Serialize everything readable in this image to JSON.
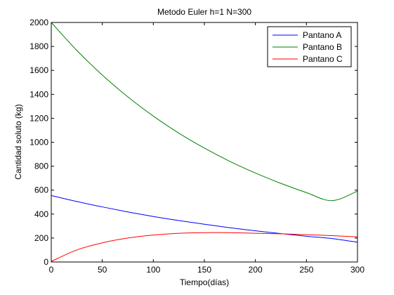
{
  "chart_data": {
    "type": "line",
    "title": "Metodo Euler h=1 N=300",
    "xlabel": "Tiempo(días)",
    "ylabel": "Cantidad soluto (kg)",
    "xlim": [
      0,
      300
    ],
    "ylim": [
      0,
      2000
    ],
    "xticks": [
      0,
      50,
      100,
      150,
      200,
      250,
      300
    ],
    "yticks": [
      0,
      200,
      400,
      600,
      800,
      1000,
      1200,
      1400,
      1600,
      1800,
      2000
    ],
    "grid": false,
    "legend_position": "top-right",
    "x": [
      0,
      25,
      50,
      75,
      100,
      125,
      150,
      175,
      200,
      225,
      250,
      275,
      300
    ],
    "series": [
      {
        "name": "Pantano A",
        "color": "#0000ff",
        "values": [
          555,
          505,
          460,
          418,
          380,
          346,
          315,
          286,
          260,
          237,
          215,
          196,
          165
        ]
      },
      {
        "name": "Pantano B",
        "color": "#008000",
        "values": [
          2000,
          1767,
          1561,
          1379,
          1218,
          1076,
          951,
          840,
          743,
          656,
          579,
          512,
          592
        ]
      },
      {
        "name": "Pantano C",
        "color": "#ff0000",
        "values": [
          5,
          100,
          160,
          200,
          225,
          240,
          245,
          245,
          240,
          235,
          228,
          220,
          210
        ]
      }
    ]
  }
}
